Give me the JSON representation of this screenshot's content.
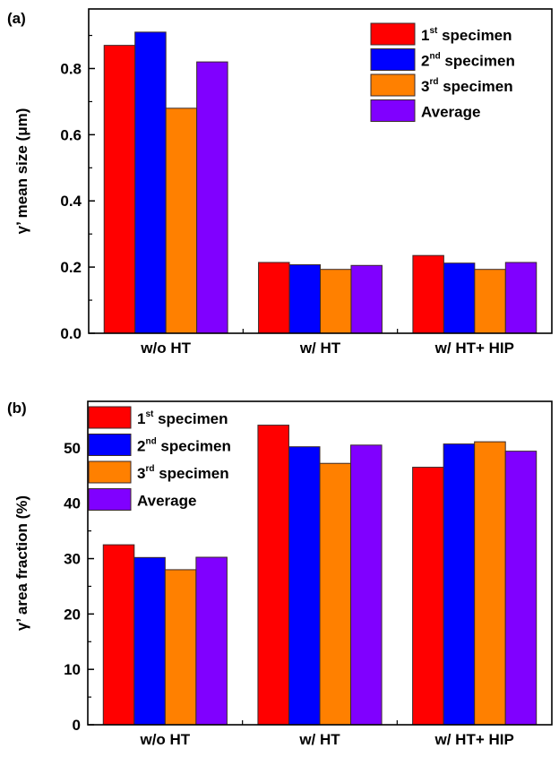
{
  "chart_data": [
    {
      "id": "a",
      "type": "bar",
      "panel_label": "(a)",
      "title": "",
      "xlabel": "",
      "ylabel": "γ’ mean size (μm)",
      "categories": [
        "w/o HT",
        "w/ HT",
        "w/ HT+ HIP"
      ],
      "ylim": [
        0,
        0.98
      ],
      "yticks": [
        0.0,
        0.2,
        0.4,
        0.6,
        0.8
      ],
      "ytick_labels": [
        "0.0",
        "0.2",
        "0.4",
        "0.6",
        "0.8"
      ],
      "minor_yticks": [
        0.1,
        0.3,
        0.5,
        0.7,
        0.9
      ],
      "grid": false,
      "legend_position": "top-right",
      "series": [
        {
          "name": "1st specimen",
          "ordinal": "1",
          "suffix": "st",
          "label": "specimen",
          "color": "#ff0000",
          "values": [
            0.87,
            0.214,
            0.235
          ]
        },
        {
          "name": "2nd specimen",
          "ordinal": "2",
          "suffix": "nd",
          "label": "specimen",
          "color": "#0000ff",
          "values": [
            0.91,
            0.207,
            0.212
          ]
        },
        {
          "name": "3rd specimen",
          "ordinal": "3",
          "suffix": "rd",
          "label": "specimen",
          "color": "#ff8000",
          "values": [
            0.68,
            0.193,
            0.193
          ]
        },
        {
          "name": "Average",
          "ordinal": "",
          "suffix": "",
          "label": "Average",
          "color": "#8000ff",
          "values": [
            0.82,
            0.205,
            0.214
          ]
        }
      ]
    },
    {
      "id": "b",
      "type": "bar",
      "panel_label": "(b)",
      "title": "",
      "xlabel": "",
      "ylabel": "γ’ area fraction (%)",
      "categories": [
        "w/o HT",
        "w/ HT",
        "w/ HT+ HIP"
      ],
      "ylim": [
        0,
        58.4
      ],
      "yticks": [
        0,
        10,
        20,
        30,
        40,
        50
      ],
      "ytick_labels": [
        "0",
        "10",
        "20",
        "30",
        "40",
        "50"
      ],
      "minor_yticks": [
        5,
        15,
        25,
        35,
        45,
        55
      ],
      "grid": false,
      "legend_position": "top-left",
      "series": [
        {
          "name": "1st specimen",
          "ordinal": "1",
          "suffix": "st",
          "label": "specimen",
          "color": "#ff0000",
          "values": [
            32.5,
            54.1,
            46.5
          ]
        },
        {
          "name": "2nd specimen",
          "ordinal": "2",
          "suffix": "nd",
          "label": "specimen",
          "color": "#0000ff",
          "values": [
            30.2,
            50.2,
            50.7
          ]
        },
        {
          "name": "3rd specimen",
          "ordinal": "3",
          "suffix": "rd",
          "label": "specimen",
          "color": "#ff8000",
          "values": [
            28.0,
            47.2,
            51.1
          ]
        },
        {
          "name": "Average",
          "ordinal": "",
          "suffix": "",
          "label": "Average",
          "color": "#8000ff",
          "values": [
            30.25,
            50.5,
            49.4
          ]
        }
      ]
    }
  ]
}
